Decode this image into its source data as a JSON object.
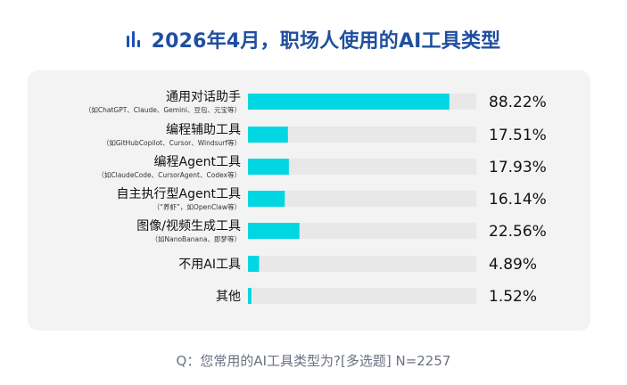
{
  "chart_data": {
    "type": "bar",
    "title": "2026年4月，职场人使用的AI工具类型",
    "question": "Q：您常用的AI工具类型为?[多选题]  N=2257",
    "categories": [
      {
        "label": "通用对话助手",
        "sublabel": "（如ChatGPT、Claude、Gemini、豆包、元宝等）"
      },
      {
        "label": "编程辅助工具",
        "sublabel": "（如GitHubCopilot、Cursor、Windsurf等）"
      },
      {
        "label": "编程Agent工具",
        "sublabel": "（如ClaudeCode、CursorAgent、Codex等）"
      },
      {
        "label": "自主执行型Agent工具",
        "sublabel": "（“养虾”，如OpenClaw等）"
      },
      {
        "label": "图像/视频生成工具",
        "sublabel": "（如NanoBanana、即梦等）"
      },
      {
        "label": "不用AI工具",
        "sublabel": ""
      },
      {
        "label": "其他",
        "sublabel": ""
      }
    ],
    "values": [
      88.22,
      17.51,
      17.93,
      16.14,
      22.56,
      4.89,
      1.52
    ],
    "value_labels": [
      "88.22%",
      "17.51%",
      "17.93%",
      "16.14%",
      "22.56%",
      "4.89%",
      "1.52%"
    ],
    "xlim": [
      0,
      100
    ],
    "grid": false,
    "legend": "none",
    "colors": {
      "bar": "#00d7e3",
      "track": "#e8e8e8",
      "title": "#1f4f9f"
    }
  }
}
